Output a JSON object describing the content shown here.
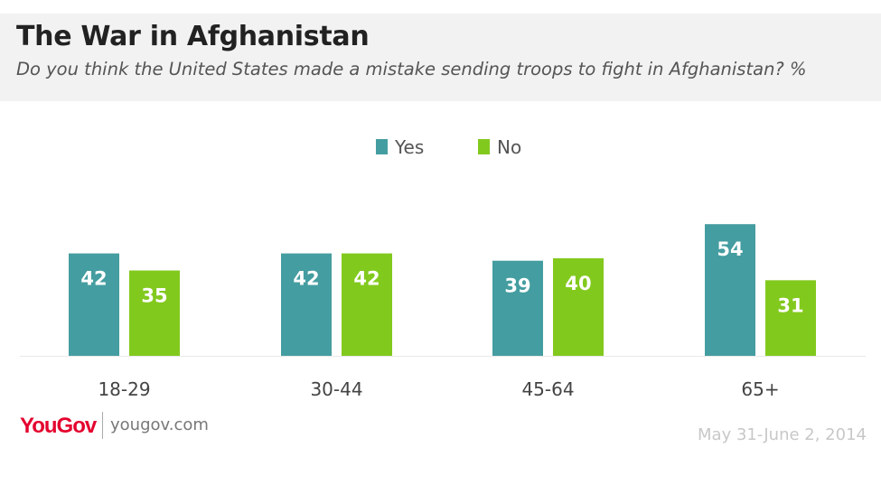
{
  "header": {
    "title": "The War in Afghanistan",
    "subtitle": "Do you think the United States made a mistake sending troops to fight in Afghanistan? %"
  },
  "footer": {
    "logo_text": "YouGov",
    "site": "yougov.com",
    "date": "May 31-June 2, 2014"
  },
  "chart_data": {
    "type": "bar",
    "categories": [
      "18-29",
      "30-44",
      "45-64",
      "65+"
    ],
    "series": [
      {
        "name": "Yes",
        "values": [
          42,
          42,
          39,
          54
        ],
        "color": "#449da0"
      },
      {
        "name": "No",
        "values": [
          35,
          42,
          40,
          31
        ],
        "color": "#82c91e"
      }
    ],
    "legend": "top-center",
    "grid": false,
    "ylim": [
      0,
      60
    ]
  }
}
